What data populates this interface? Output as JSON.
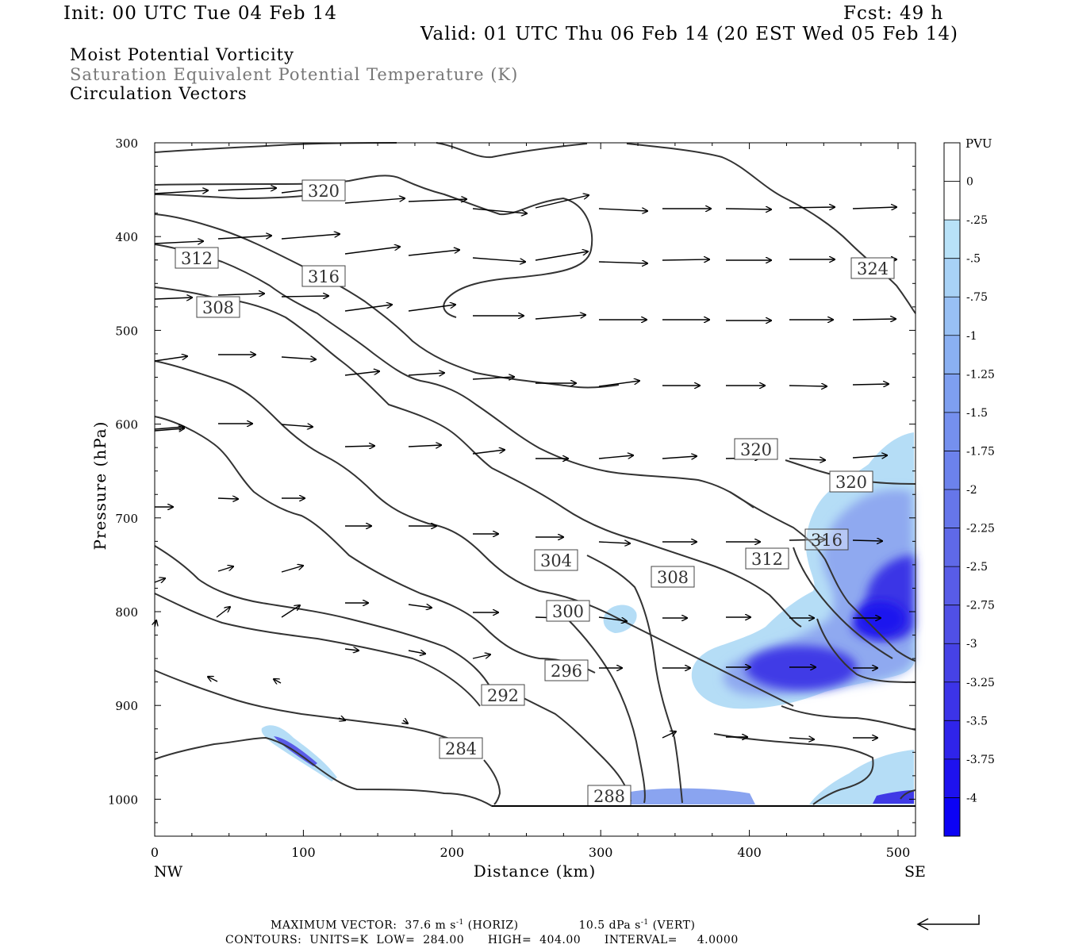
{
  "header": {
    "init": "Init: 00 UTC Tue 04 Feb 14",
    "fcst": "Fcst:   49 h",
    "valid": "Valid: 01 UTC Thu 06 Feb 14 (20 EST Wed 05 Feb 14)"
  },
  "titles": {
    "line1": "Moist Potential Vorticity",
    "line2": "Saturation Equivalent Potential Temperature (K)",
    "line3": "Circulation Vectors"
  },
  "chart_data": {
    "type": "cross-section",
    "xlabel": "Distance (km)",
    "ylabel": "Pressure (hPa)",
    "xlim": [
      0,
      512
    ],
    "ylim": [
      1040,
      300
    ],
    "x_ticks": [
      "0",
      "100",
      "200",
      "300",
      "400",
      "500"
    ],
    "y_ticks": [
      "300",
      "400",
      "500",
      "600",
      "700",
      "800",
      "900",
      "1000"
    ],
    "x_end_labels": {
      "left": "NW",
      "right": "SE"
    },
    "colorbar": {
      "unit": "PVU",
      "labels": [
        "0",
        "-.25",
        "-.5",
        "-.75",
        "-1",
        "-1.25",
        "-1.5",
        "-1.75",
        "-2",
        "-2.25",
        "-2.5",
        "-2.75",
        "-3",
        "-3.25",
        "-3.5",
        "-3.75",
        "-4"
      ],
      "colors": [
        "#ffffff",
        "#ffffff",
        "#b8e2f8",
        "#a8d2f6",
        "#98c0f4",
        "#8ab0f2",
        "#7e9ff0",
        "#7590ee",
        "#6c82ec",
        "#6676ea",
        "#5f69e8",
        "#585ce7",
        "#5050e6",
        "#4642e6",
        "#3c34e8",
        "#2f24ea",
        "#1e12ee",
        "#0c02f4"
      ]
    },
    "contour_labels": [
      "320",
      "312",
      "316",
      "308",
      "324",
      "320",
      "320",
      "316",
      "312",
      "304",
      "308",
      "300",
      "296",
      "292",
      "284",
      "288"
    ],
    "pv_minimum": "-4",
    "contours": {
      "units": "K",
      "low": "284.00",
      "high": "404.00",
      "interval": "4.0000"
    }
  },
  "footer": {
    "max_vector_label": "MAXIMUM VECTOR:",
    "max_vector_horiz_value": "37.6",
    "max_vector_horiz_unit": "m s",
    "max_vector_horiz_kind": "(HORIZ)",
    "max_vector_vert_value": "10.5",
    "max_vector_vert_unit": "dPa s",
    "max_vector_vert_kind": "(VERT)",
    "exponent": "-1",
    "contours_line": "CONTOURS:  UNITS=K  LOW=  284.00      HIGH=  404.00      INTERVAL=     4.0000"
  }
}
